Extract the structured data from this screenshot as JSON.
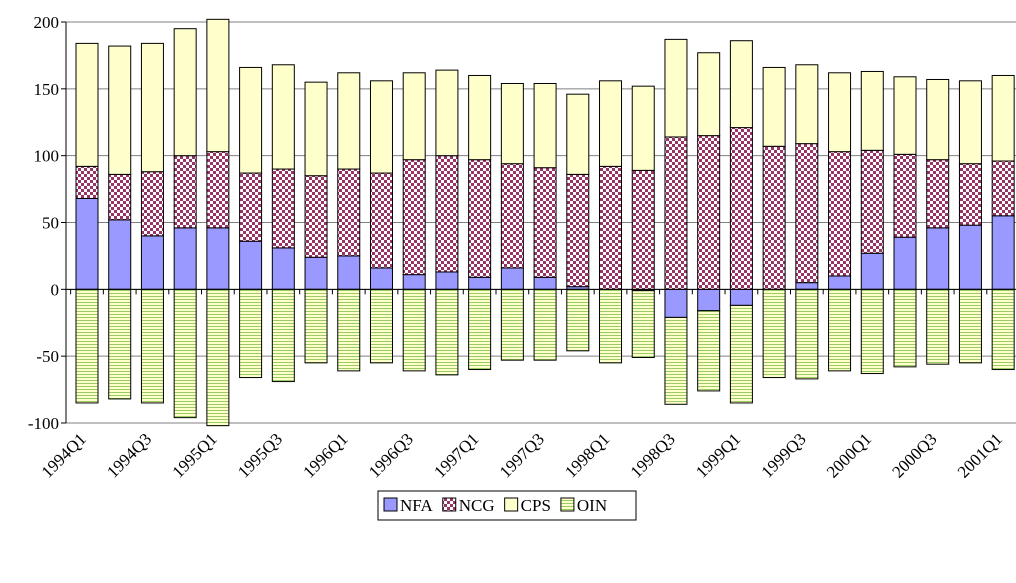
{
  "chart_data": {
    "type": "bar",
    "stacked": true,
    "categories": [
      "1994Q1",
      null,
      "1994Q3",
      null,
      "1995Q1",
      null,
      "1995Q3",
      null,
      "1996Q1",
      null,
      "1996Q3",
      null,
      "1997Q1",
      null,
      "1997Q3",
      null,
      "1998Q1",
      null,
      "1998Q3",
      null,
      "1999Q1",
      null,
      "1999Q3",
      null,
      "2000Q1",
      null,
      "2000Q3",
      null,
      "2001Q1"
    ],
    "series": [
      {
        "name": "NFA",
        "color": "#9999ff",
        "pattern": "solid",
        "values": [
          68,
          52,
          40,
          46,
          46,
          36,
          31,
          24,
          25,
          16,
          11,
          13,
          9,
          16,
          9,
          2,
          0,
          -1,
          -21,
          -16,
          -12,
          0,
          5,
          10,
          27,
          39,
          46,
          48,
          55
        ]
      },
      {
        "name": "NCG",
        "color": "#993366",
        "pattern": "checker",
        "values": [
          24,
          34,
          48,
          54,
          57,
          51,
          59,
          61,
          65,
          71,
          86,
          87,
          88,
          78,
          82,
          84,
          92,
          89,
          114,
          115,
          121,
          107,
          104,
          93,
          77,
          62,
          51,
          46,
          41
        ]
      },
      {
        "name": "CPS",
        "color": "#ffffcc",
        "pattern": "solid",
        "values": [
          92,
          96,
          96,
          95,
          99,
          79,
          78,
          70,
          72,
          69,
          65,
          64,
          63,
          60,
          63,
          60,
          64,
          63,
          73,
          62,
          65,
          59,
          59,
          59,
          59,
          58,
          60,
          62,
          64
        ]
      },
      {
        "name": "OIN",
        "color": "#99cc66",
        "pattern": "hstripe",
        "values": [
          -85,
          -82,
          -85,
          -96,
          -102,
          -66,
          -69,
          -55,
          -61,
          -55,
          -61,
          -64,
          -60,
          -53,
          -53,
          -46,
          -55,
          -50,
          -65,
          -60,
          -73,
          -66,
          -67,
          -61,
          -63,
          -58,
          -56,
          -55,
          -60
        ]
      }
    ],
    "ylim": [
      -100,
      200
    ],
    "yticks": [
      -100,
      -50,
      0,
      50,
      100,
      150,
      200
    ],
    "grid": true,
    "legend": "bottom"
  }
}
